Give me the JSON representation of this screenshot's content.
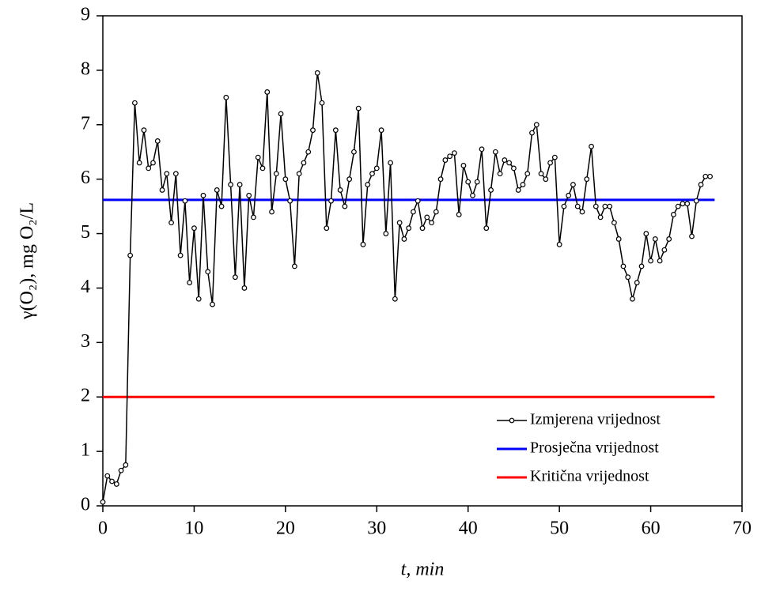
{
  "chart_data": {
    "type": "line",
    "x_label": "t, min",
    "y_label": "γ(O₂), mg O₂/L",
    "xlim": [
      0,
      70
    ],
    "xticks": [
      0,
      10,
      20,
      30,
      40,
      50,
      60,
      70
    ],
    "ylim": [
      0,
      9
    ],
    "yticks": [
      0,
      1,
      2,
      3,
      4,
      5,
      6,
      7,
      8,
      9
    ],
    "legend": "lower right",
    "series": [
      {
        "name": "Izmjerena vrijednost",
        "color": "#000000",
        "marker": "circle",
        "x": [
          0,
          0.5,
          1,
          1.5,
          2,
          2.5,
          3,
          3.5,
          4,
          4.5,
          5,
          5.5,
          6,
          6.5,
          7,
          7.5,
          8,
          8.5,
          9,
          9.5,
          10,
          10.5,
          11,
          11.5,
          12,
          12.5,
          13,
          13.5,
          14,
          14.5,
          15,
          15.5,
          16,
          16.5,
          17,
          17.5,
          18,
          18.5,
          19,
          19.5,
          20,
          20.5,
          21,
          21.5,
          22,
          22.5,
          23,
          23.5,
          24,
          24.5,
          25,
          25.5,
          26,
          26.5,
          27,
          27.5,
          28,
          28.5,
          29,
          29.5,
          30,
          30.5,
          31,
          31.5,
          32,
          32.5,
          33,
          33.5,
          34,
          34.5,
          35,
          35.5,
          36,
          36.5,
          37,
          37.5,
          38,
          38.5,
          39,
          39.5,
          40,
          40.5,
          41,
          41.5,
          42,
          42.5,
          43,
          43.5,
          44,
          44.5,
          45,
          45.5,
          46,
          46.5,
          47,
          47.5,
          48,
          48.5,
          49,
          49.5,
          50,
          50.5,
          51,
          51.5,
          52,
          52.5,
          53,
          53.5,
          54,
          54.5,
          55,
          55.5,
          56,
          56.5,
          57,
          57.5,
          58,
          58.5,
          59,
          59.5,
          60,
          60.5,
          61,
          61.5,
          62,
          62.5,
          63,
          63.5,
          64,
          64.5,
          65,
          65.5,
          66,
          66.5
        ],
        "values": [
          0.07,
          0.55,
          0.45,
          0.4,
          0.65,
          0.75,
          4.6,
          7.4,
          6.3,
          6.9,
          6.2,
          6.3,
          6.7,
          5.8,
          6.1,
          5.2,
          6.1,
          4.6,
          5.6,
          4.1,
          5.1,
          3.8,
          5.7,
          4.3,
          3.7,
          5.8,
          5.5,
          7.5,
          5.9,
          4.2,
          5.9,
          4.0,
          5.7,
          5.3,
          6.4,
          6.2,
          7.6,
          5.4,
          6.1,
          7.2,
          6.0,
          5.6,
          4.4,
          6.1,
          6.3,
          6.5,
          6.9,
          7.95,
          7.4,
          5.1,
          5.6,
          6.9,
          5.8,
          5.5,
          6.0,
          6.5,
          7.3,
          4.8,
          5.9,
          6.1,
          6.2,
          6.9,
          5.0,
          6.3,
          3.8,
          5.2,
          4.9,
          5.1,
          5.4,
          5.6,
          5.1,
          5.3,
          5.2,
          5.4,
          6.0,
          6.35,
          6.42,
          6.48,
          5.35,
          6.25,
          5.95,
          5.7,
          5.95,
          6.55,
          5.1,
          5.8,
          6.5,
          6.1,
          6.35,
          6.3,
          6.2,
          5.8,
          5.9,
          6.1,
          6.85,
          7.0,
          6.1,
          6.0,
          6.3,
          6.4,
          4.8,
          5.5,
          5.7,
          5.9,
          5.5,
          5.4,
          6.0,
          6.6,
          5.5,
          5.3,
          5.5,
          5.5,
          5.2,
          4.9,
          4.4,
          4.2,
          3.8,
          4.1,
          4.4,
          5.0,
          4.5,
          4.9,
          4.5,
          4.7,
          4.9,
          5.35,
          5.5,
          5.55,
          5.55,
          4.95,
          5.6,
          5.9,
          6.05,
          6.05
        ]
      },
      {
        "name": "Prosječna vrijednost",
        "color": "#0000ff",
        "x": [
          0,
          67
        ],
        "values": [
          5.62,
          5.62
        ]
      },
      {
        "name": "Kritična vrijednost",
        "color": "#ff0000",
        "x": [
          0,
          67
        ],
        "values": [
          2,
          2
        ]
      }
    ]
  }
}
